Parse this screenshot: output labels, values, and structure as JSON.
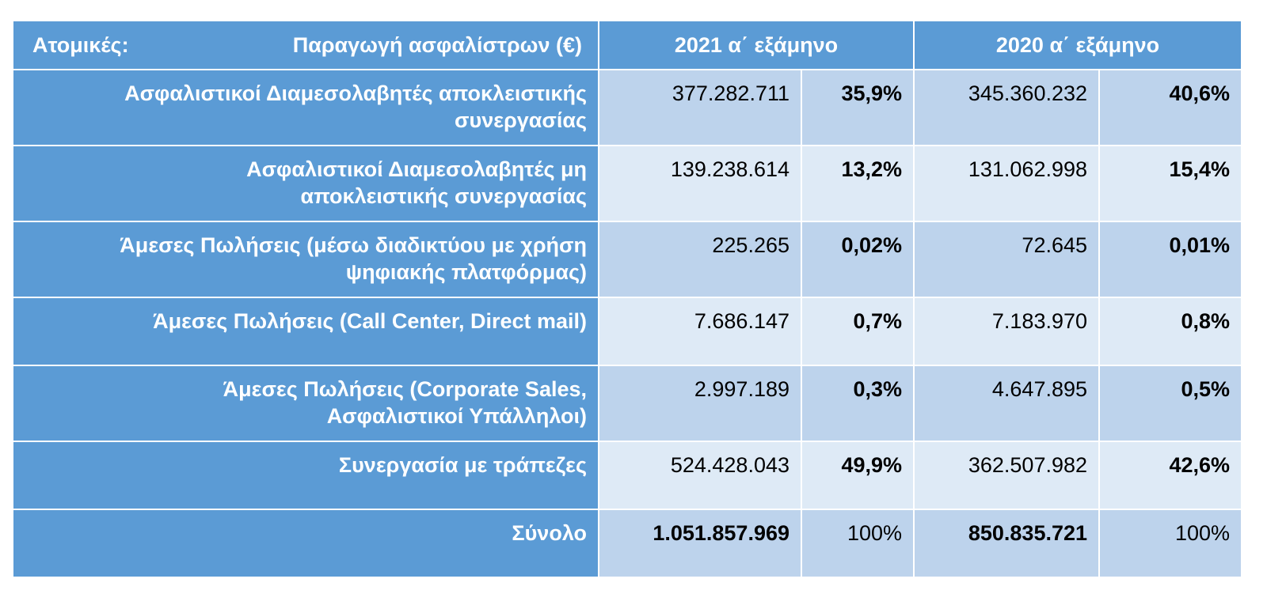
{
  "header": {
    "col_label_left": "Ατομικές:",
    "col_label_right": "Παραγωγή ασφαλίστρων   (€)",
    "year_2021": "2021  α΄ εξάμηνο",
    "year_2020": "2020  α΄ εξάμηνο"
  },
  "rows": [
    {
      "label_line1": "Ασφαλιστικοί Διαμεσολαβητές αποκλειστικής",
      "label_line2": "συνεργασίας",
      "v2021": "377.282.711",
      "p2021": "35,9%",
      "v2020": "345.360.232",
      "p2020": "40,6%"
    },
    {
      "label_line1": "Ασφαλιστικοί Διαμεσολαβητές  μη",
      "label_line2": "αποκλειστικής συνεργασίας",
      "v2021": "139.238.614",
      "p2021": "13,2%",
      "v2020": "131.062.998",
      "p2020": "15,4%"
    },
    {
      "label_line1": "Άμεσες Πωλήσεις  (μέσω διαδικτύου με χρήση",
      "label_line2": "ψηφιακής πλατφόρμας)",
      "v2021": "225.265",
      "p2021": "0,02%",
      "v2020": "72.645",
      "p2020": "0,01%"
    },
    {
      "label_line1": "Άμεσες Πωλήσεις  (Call Center,  Direct mail)",
      "label_line2": "",
      "v2021": "7.686.147",
      "p2021": "0,7%",
      "v2020": "7.183.970",
      "p2020": "0,8%"
    },
    {
      "label_line1": "Άμεσες Πωλήσεις  (Corporate Sales,",
      "label_line2": "Ασφαλιστικοί Υπάλληλοι)",
      "v2021": "2.997.189",
      "p2021": "0,3%",
      "v2020": "4.647.895",
      "p2020": "0,5%"
    },
    {
      "label_line1": "Συνεργασία με τράπεζες",
      "label_line2": "",
      "v2021": "524.428.043",
      "p2021": "49,9%",
      "v2020": "362.507.982",
      "p2020": "42,6%"
    }
  ],
  "total": {
    "label": "Σύνολο",
    "v2021": "1.051.857.969",
    "p2021": "100%",
    "v2020": "850.835.721",
    "p2020": "100%"
  },
  "colors": {
    "header_blue": "#5b9bd5",
    "cell_dark": "#bdd3ec",
    "cell_light": "#deeaf6"
  }
}
